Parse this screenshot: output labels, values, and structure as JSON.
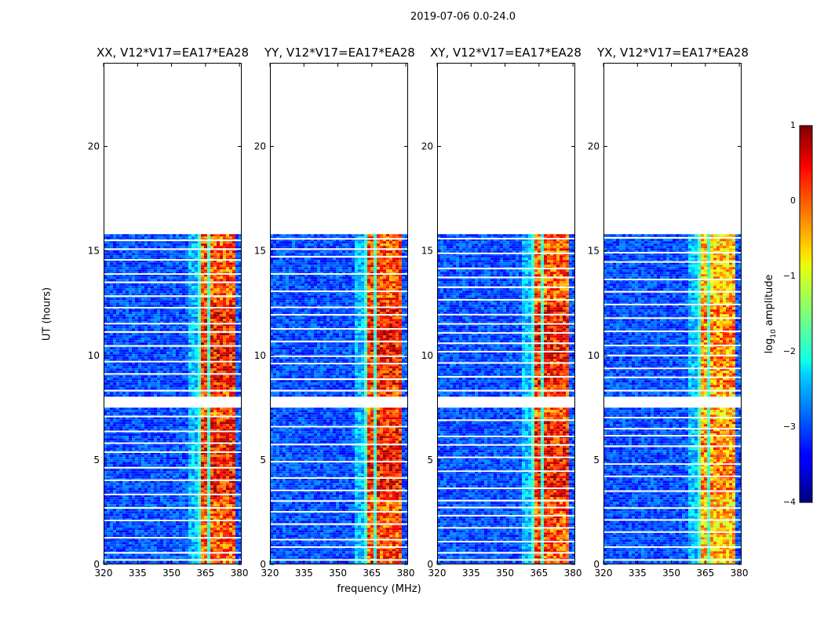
{
  "chart_data": {
    "type": "heatmap",
    "suptitle": "2019-07-06 0.0-24.0",
    "xlabel": "frequency (MHz)",
    "ylabel": "UT (hours)",
    "xlim": [
      320,
      381
    ],
    "ylim": [
      0,
      24
    ],
    "xticks": [
      "320",
      "335",
      "350",
      "365",
      "380"
    ],
    "yticks": [
      "0",
      "5",
      "10",
      "15",
      "20"
    ],
    "data_coverage_hours": [
      [
        0.0,
        7.5
      ],
      [
        8.1,
        15.8
      ]
    ],
    "bright_band_mhz": [
      361,
      378
    ],
    "panels": [
      {
        "title": "XX, V12*V17=EA17*EA28",
        "band_level": "high"
      },
      {
        "title": "YY, V12*V17=EA17*EA28",
        "band_level": "high"
      },
      {
        "title": "XY, V12*V17=EA17*EA28",
        "band_level": "high"
      },
      {
        "title": "YX, V12*V17=EA17*EA28",
        "band_level": "medium"
      }
    ],
    "colorbar": {
      "label": "log10 amplitude",
      "range": [
        -4,
        1
      ],
      "ticks": [
        "1",
        "0",
        "−1",
        "−2",
        "−3",
        "−4"
      ]
    }
  }
}
